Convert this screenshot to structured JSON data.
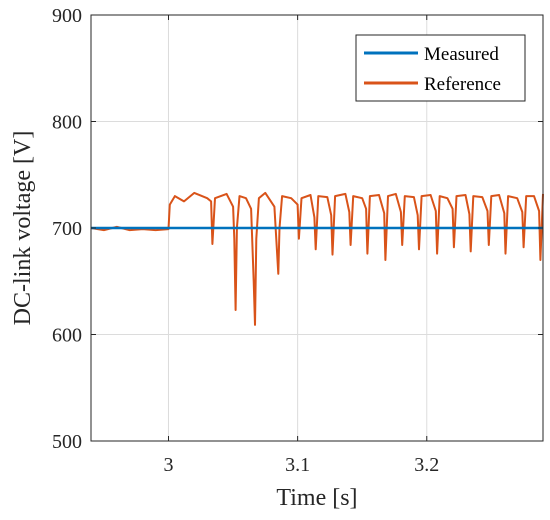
{
  "chart_data": {
    "type": "line",
    "title": "",
    "xlabel": "Time [s]",
    "ylabel": "DC-link voltage [V]",
    "xlim": [
      2.94,
      3.29
    ],
    "ylim": [
      500,
      900
    ],
    "xticks": [
      3,
      3.1,
      3.2
    ],
    "xtick_labels": [
      "3",
      "3.1",
      "3.2"
    ],
    "yticks": [
      500,
      600,
      700,
      800,
      900
    ],
    "ytick_labels": [
      "500",
      "600",
      "700",
      "800",
      "900"
    ],
    "grid": true,
    "legend_position": "top-right",
    "series": [
      {
        "name": "Measured",
        "color": "#0072BD",
        "x": [
          2.94,
          3.29
        ],
        "y": [
          700,
          700
        ]
      },
      {
        "name": "Reference",
        "color": "#D95319",
        "x": [
          2.94,
          2.95,
          2.96,
          2.97,
          2.98,
          2.99,
          3.0,
          3.001,
          3.005,
          3.012,
          3.02,
          3.03,
          3.033,
          3.034,
          3.036,
          3.045,
          3.05,
          3.051,
          3.052,
          3.053,
          3.055,
          3.06,
          3.064,
          3.066,
          3.067,
          3.068,
          3.07,
          3.075,
          3.082,
          3.085,
          3.086,
          3.088,
          3.095,
          3.1,
          3.101,
          3.103,
          3.11,
          3.113,
          3.114,
          3.116,
          3.123,
          3.126,
          3.127,
          3.129,
          3.137,
          3.14,
          3.141,
          3.143,
          3.15,
          3.153,
          3.154,
          3.156,
          3.163,
          3.167,
          3.168,
          3.17,
          3.176,
          3.18,
          3.181,
          3.183,
          3.19,
          3.193,
          3.194,
          3.196,
          3.203,
          3.207,
          3.208,
          3.21,
          3.216,
          3.22,
          3.221,
          3.223,
          3.23,
          3.233,
          3.234,
          3.236,
          3.243,
          3.247,
          3.248,
          3.25,
          3.256,
          3.26,
          3.261,
          3.263,
          3.27,
          3.274,
          3.275,
          3.277,
          3.283,
          3.287,
          3.288,
          3.29
        ],
        "y": [
          700,
          698,
          701,
          698,
          699,
          698,
          699,
          722,
          730,
          725,
          733,
          728,
          725,
          685,
          728,
          732,
          720,
          690,
          623,
          700,
          730,
          728,
          718,
          650,
          609,
          690,
          728,
          733,
          720,
          657,
          700,
          730,
          728,
          722,
          690,
          728,
          731,
          710,
          680,
          730,
          729,
          712,
          675,
          730,
          732,
          715,
          684,
          730,
          728,
          718,
          676,
          730,
          731,
          714,
          670,
          730,
          732,
          715,
          684,
          730,
          729,
          712,
          680,
          730,
          731,
          716,
          676,
          730,
          728,
          718,
          682,
          730,
          731,
          713,
          678,
          730,
          729,
          716,
          684,
          730,
          731,
          714,
          676,
          730,
          728,
          715,
          682,
          730,
          730,
          716,
          670,
          732
        ]
      }
    ]
  }
}
